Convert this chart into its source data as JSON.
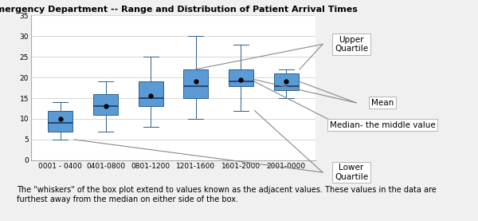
{
  "title": "Emergency Department -- Range and Distribution of Patient Arrival Times",
  "categories": [
    "0001 - 0400",
    "0401-0800",
    "0801-1200",
    "1201-1600",
    "1601-2000",
    "2001-0000"
  ],
  "boxes": [
    {
      "q1": 7,
      "median": 9,
      "q3": 12,
      "whisker_low": 5,
      "whisker_high": 14,
      "mean": 10
    },
    {
      "q1": 11,
      "median": 13,
      "q3": 16,
      "whisker_low": 7,
      "whisker_high": 19,
      "mean": 13
    },
    {
      "q1": 13,
      "median": 15,
      "q3": 19,
      "whisker_low": 8,
      "whisker_high": 25,
      "mean": 15.5
    },
    {
      "q1": 15,
      "median": 18,
      "q3": 22,
      "whisker_low": 10,
      "whisker_high": 30,
      "mean": 19
    },
    {
      "q1": 18,
      "median": 19,
      "q3": 22,
      "whisker_low": 12,
      "whisker_high": 28,
      "mean": 19.5
    },
    {
      "q1": 17,
      "median": 18,
      "q3": 21,
      "whisker_low": 15,
      "whisker_high": 22,
      "mean": 19
    }
  ],
  "box_color": "#5B9BD5",
  "box_edge_color": "#2E5F8A",
  "median_color": "#1F3864",
  "mean_color": "black",
  "whisker_color": "#2E5F8A",
  "cap_color": "#2E5F8A",
  "ylim": [
    0,
    35
  ],
  "yticks": [
    0,
    5,
    10,
    15,
    20,
    25,
    30,
    35
  ],
  "grid_color": "#C8C8C8",
  "fig_bg_color": "#F0F0F0",
  "chart_bg_color": "#FFFFFF",
  "footnote": "The \"whiskers\" of the box plot extend to values known as the adjacent values. These values in the data are\nfurthest away from the median on either side of the box.",
  "annotation_upper_quartile": "Upper\nQuartile",
  "annotation_mean": "Mean",
  "annotation_median": "Median- the middle value",
  "annotation_lower_quartile": "Lower\nQuartile",
  "title_fontsize": 8,
  "tick_fontsize": 6.5,
  "ann_fontsize": 7.5,
  "footnote_fontsize": 7
}
